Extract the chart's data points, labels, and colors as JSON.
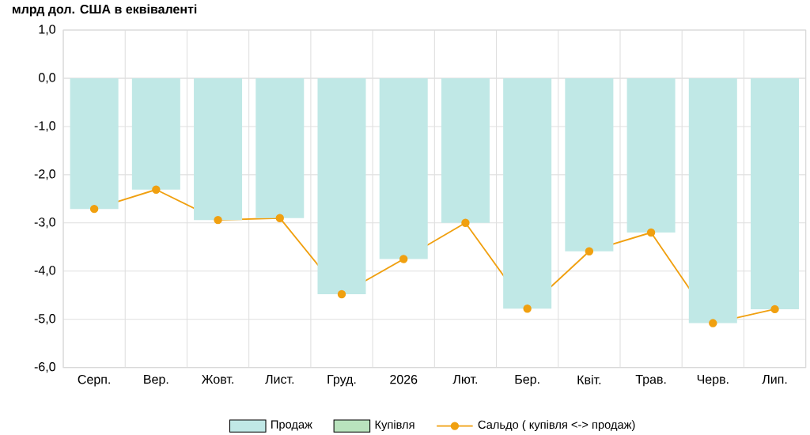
{
  "chart_data": {
    "type": "bar",
    "ylabel": "млрд дол. США в еквіваленті",
    "categories": [
      "Серп.",
      "Вер.",
      "Жовт.",
      "Лист.",
      "Груд.",
      "2026",
      "Лют.",
      "Бер.",
      "Квіт.",
      "Трав.",
      "Черв.",
      "Лип."
    ],
    "series": [
      {
        "name": "Продаж",
        "color": "#c0e8e6",
        "values": [
          -2.71,
          -2.31,
          -2.94,
          -2.9,
          -4.48,
          -3.75,
          -3.0,
          -4.78,
          -3.59,
          -3.2,
          -5.08,
          -4.79
        ]
      },
      {
        "name": "Купівля",
        "color": "#b9e3bd",
        "values": [
          0,
          0,
          0,
          0,
          0,
          0,
          0,
          0,
          0,
          0,
          0,
          0
        ]
      },
      {
        "name": "Сальдо ( купівля <-> продаж)",
        "type": "line",
        "color": "#f0a010",
        "marker": "circle",
        "values": [
          -2.71,
          -2.31,
          -2.94,
          -2.9,
          -4.48,
          -3.75,
          -3.0,
          -4.78,
          -3.59,
          -3.2,
          -5.08,
          -4.79
        ]
      }
    ],
    "stacked": true,
    "ylim": [
      -6,
      1
    ],
    "yticks": [
      {
        "value": -6,
        "label": "-6,0"
      },
      {
        "value": -5,
        "label": "-5,0"
      },
      {
        "value": -4,
        "label": "-4,0"
      },
      {
        "value": -3,
        "label": "-3,0"
      },
      {
        "value": -2,
        "label": "-2,0"
      },
      {
        "value": -1,
        "label": "-1,0"
      },
      {
        "value": 0,
        "label": "0,0"
      },
      {
        "value": 1,
        "label": "1,0"
      }
    ],
    "grid": true,
    "legend": "bottom"
  }
}
